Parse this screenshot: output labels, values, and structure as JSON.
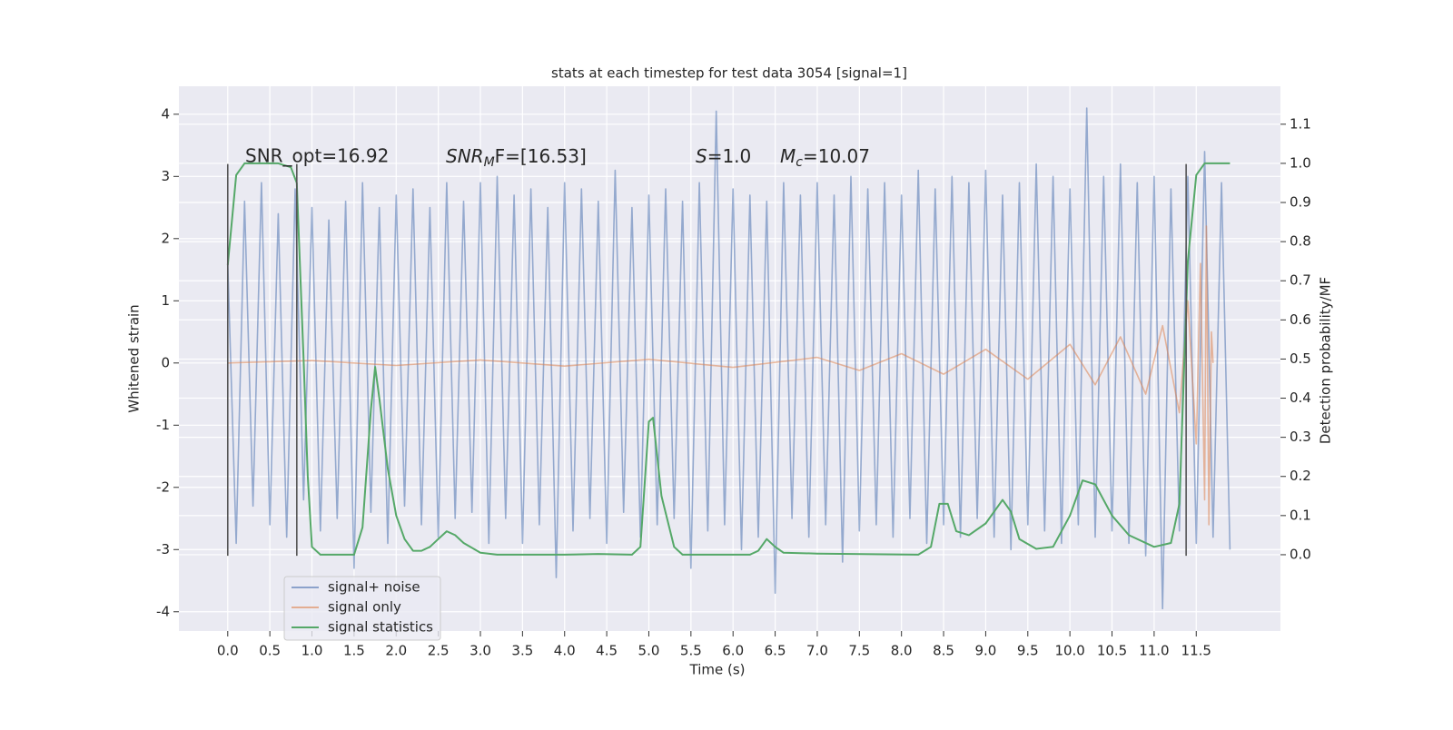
{
  "chart_data": {
    "type": "line",
    "title": "stats at each timestep for test data 3054 [signal=1]",
    "xlabel": "Time (s)",
    "ylabel": "Whitened strain",
    "y2label": "Detection probability/MF",
    "annotations": [
      {
        "text": "SNR_opt=16.92"
      },
      {
        "base": "SNR",
        "sub": "M",
        "rest": "F=[16.53]"
      },
      {
        "base": "S",
        "rest": "=1.0"
      },
      {
        "base": "M",
        "sub": "c",
        "rest": "=10.07"
      }
    ],
    "xlim": [
      -0.58,
      12.5
    ],
    "ylim": [
      -4.31,
      4.45
    ],
    "y2lim": [
      -0.195,
      1.197
    ],
    "xticks": [
      {
        "value": 0,
        "label": "0.0"
      },
      0.5,
      {
        "value": 1,
        "label": "1.0"
      },
      1.5,
      {
        "value": 2,
        "label": "2.0"
      },
      2.5,
      {
        "value": 3,
        "label": "3.0"
      },
      3.5,
      {
        "value": 4,
        "label": "4.0"
      },
      4.5,
      {
        "value": 5,
        "label": "5.0"
      },
      5.5,
      {
        "value": 6,
        "label": "6.0"
      },
      6.5,
      {
        "value": 7,
        "label": "7.0"
      },
      7.5,
      {
        "value": 8,
        "label": "8.0"
      },
      8.5,
      {
        "value": 9,
        "label": "9.0"
      },
      9.5,
      {
        "value": 10,
        "label": "10.0"
      },
      10.5,
      {
        "value": 11,
        "label": "11.0"
      },
      11.5
    ],
    "yticks": [
      -4,
      -3,
      -2,
      -1,
      0,
      1,
      2,
      3,
      4
    ],
    "y2ticks": [
      {
        "value": 0,
        "label": "0.0"
      },
      0.1,
      0.2,
      0.3,
      0.4,
      0.5,
      0.6,
      0.7,
      0.8,
      0.9,
      {
        "value": 1,
        "label": "1.0"
      },
      1.1
    ],
    "grid": true,
    "legend": "lower left",
    "series": [
      {
        "name": "signal+ noise",
        "color": "#4c72b0",
        "x": [
          0.0,
          0.1,
          0.2,
          0.3,
          0.4,
          0.5,
          0.6,
          0.7,
          0.8,
          0.9,
          1.0,
          1.1,
          1.2,
          1.3,
          1.4,
          1.5,
          1.6,
          1.7,
          1.8,
          1.9,
          2.0,
          2.1,
          2.2,
          2.3,
          2.4,
          2.5,
          2.6,
          2.7,
          2.8,
          2.9,
          3.0,
          3.1,
          3.2,
          3.3,
          3.4,
          3.5,
          3.6,
          3.7,
          3.8,
          3.9,
          4.0,
          4.1,
          4.2,
          4.3,
          4.4,
          4.5,
          4.6,
          4.7,
          4.8,
          4.9,
          5.0,
          5.1,
          5.2,
          5.3,
          5.4,
          5.5,
          5.6,
          5.7,
          5.8,
          5.9,
          6.0,
          6.1,
          6.2,
          6.3,
          6.4,
          6.5,
          6.6,
          6.7,
          6.8,
          6.9,
          7.0,
          7.1,
          7.2,
          7.3,
          7.4,
          7.5,
          7.6,
          7.7,
          7.8,
          7.9,
          8.0,
          8.1,
          8.2,
          8.3,
          8.4,
          8.5,
          8.6,
          8.7,
          8.8,
          8.9,
          9.0,
          9.1,
          9.2,
          9.3,
          9.4,
          9.5,
          9.6,
          9.7,
          9.8,
          9.9,
          10.0,
          10.1,
          10.2,
          10.3,
          10.4,
          10.5,
          10.6,
          10.7,
          10.8,
          10.9,
          11.0,
          11.1,
          11.2,
          11.3,
          11.4,
          11.5,
          11.6,
          11.7,
          11.8,
          11.9
        ],
        "values": [
          1.6,
          -2.9,
          2.6,
          -2.3,
          2.9,
          -2.6,
          2.4,
          -2.8,
          2.8,
          -2.2,
          2.5,
          -2.7,
          2.3,
          -2.5,
          2.6,
          -3.3,
          2.9,
          -2.4,
          2.5,
          -2.9,
          2.7,
          -2.3,
          2.8,
          -2.6,
          2.5,
          -2.8,
          2.9,
          -2.5,
          2.6,
          -2.4,
          2.9,
          -2.9,
          3.0,
          -2.5,
          2.7,
          -2.9,
          2.8,
          -2.6,
          2.5,
          -3.45,
          2.9,
          -2.7,
          2.8,
          -2.5,
          2.6,
          -2.9,
          3.1,
          -2.4,
          2.5,
          -2.8,
          2.7,
          -2.6,
          2.8,
          -2.5,
          2.6,
          -3.3,
          2.9,
          -2.7,
          4.05,
          -2.6,
          2.8,
          -3.0,
          2.7,
          -2.8,
          2.6,
          -3.7,
          2.9,
          -2.5,
          2.7,
          -2.8,
          2.9,
          -2.6,
          2.7,
          -3.2,
          3.0,
          -2.7,
          2.8,
          -2.6,
          2.9,
          -2.8,
          2.7,
          -2.5,
          3.1,
          -2.9,
          2.8,
          -2.6,
          3.0,
          -2.8,
          2.9,
          -2.5,
          3.1,
          -2.8,
          2.7,
          -3.0,
          2.9,
          -2.6,
          3.2,
          -2.7,
          3.0,
          -2.9,
          2.8,
          -2.6,
          4.1,
          -2.8,
          3.0,
          -2.7,
          3.2,
          -2.9,
          2.9,
          -3.1,
          3.0,
          -3.95,
          2.8,
          -2.7,
          3.0,
          -2.9,
          3.4,
          -2.8,
          2.9,
          -3.0
        ]
      },
      {
        "name": "signal only",
        "color": "#dd8452",
        "x": [
          0,
          1,
          2,
          3,
          4,
          5,
          6,
          7,
          7.5,
          8,
          8.5,
          9,
          9.5,
          10,
          10.3,
          10.6,
          10.9,
          11.1,
          11.3,
          11.4,
          11.5,
          11.55,
          11.6,
          11.62,
          11.65,
          11.68,
          11.7
        ],
        "values": [
          0,
          0.04,
          -0.04,
          0.05,
          -0.05,
          0.06,
          -0.07,
          0.09,
          -0.12,
          0.15,
          -0.18,
          0.22,
          -0.26,
          0.3,
          -0.35,
          0.42,
          -0.5,
          0.6,
          -0.8,
          1.0,
          -1.3,
          1.6,
          -2.2,
          2.2,
          -2.6,
          0.5,
          0
        ]
      },
      {
        "name": "signal statistics",
        "color": "#55a868",
        "axis": "y2",
        "x": [
          0.0,
          0.1,
          0.2,
          0.4,
          0.6,
          0.75,
          0.82,
          0.9,
          0.95,
          1.0,
          1.1,
          1.5,
          1.6,
          1.7,
          1.75,
          1.8,
          1.9,
          2.0,
          2.1,
          2.2,
          2.3,
          2.4,
          2.5,
          2.6,
          2.7,
          2.8,
          3.0,
          3.2,
          4.0,
          4.4,
          4.8,
          4.9,
          5.0,
          5.05,
          5.15,
          5.3,
          5.4,
          6.2,
          6.3,
          6.4,
          6.5,
          6.6,
          7.0,
          8.2,
          8.35,
          8.45,
          8.55,
          8.65,
          8.8,
          9.0,
          9.2,
          9.3,
          9.4,
          9.6,
          9.8,
          10.0,
          10.15,
          10.3,
          10.5,
          10.7,
          11.0,
          11.2,
          11.3,
          11.4,
          11.5,
          11.6,
          11.9
        ],
        "values": [
          0.74,
          0.97,
          1.0,
          1.0,
          1.0,
          0.99,
          0.95,
          0.5,
          0.2,
          0.02,
          0.0,
          0.0,
          0.07,
          0.37,
          0.48,
          0.4,
          0.22,
          0.1,
          0.04,
          0.01,
          0.01,
          0.02,
          0.04,
          0.06,
          0.05,
          0.03,
          0.005,
          0.0,
          0.0,
          0.002,
          0.0,
          0.02,
          0.34,
          0.35,
          0.15,
          0.02,
          0.0,
          0.0,
          0.01,
          0.04,
          0.02,
          0.005,
          0.003,
          0.0,
          0.02,
          0.13,
          0.13,
          0.06,
          0.05,
          0.08,
          0.14,
          0.11,
          0.04,
          0.015,
          0.02,
          0.1,
          0.19,
          0.18,
          0.1,
          0.05,
          0.02,
          0.03,
          0.13,
          0.75,
          0.97,
          1.0,
          1.0
        ]
      }
    ],
    "vlines": {
      "x": [
        0,
        0.82,
        11.38
      ],
      "ymin": -3.1,
      "ymax": 3.2,
      "color": "#555555"
    }
  }
}
